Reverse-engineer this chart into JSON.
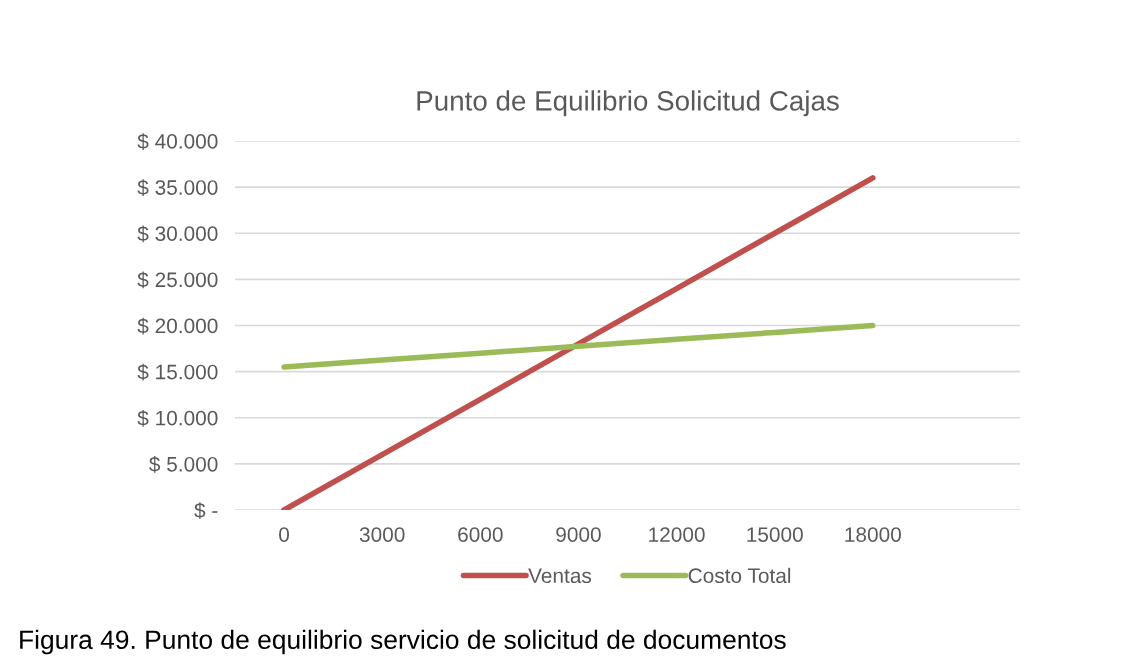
{
  "chart_data": {
    "type": "line",
    "title": "Punto de Equilibrio Solicitud Cajas",
    "categories": [
      "0",
      "3000",
      "6000",
      "9000",
      "12000",
      "15000",
      "18000",
      null
    ],
    "series": [
      {
        "name": "Ventas",
        "color": "#c0504d",
        "values": [
          0,
          6000,
          12000,
          18000,
          24000,
          30000,
          36000,
          null
        ]
      },
      {
        "name": "Costo Total",
        "color": "#9bbb59",
        "values": [
          15500,
          16250,
          17000,
          17750,
          18500,
          19250,
          20000,
          null
        ]
      }
    ],
    "ylim": [
      0,
      40000
    ],
    "yticks": [
      {
        "value": 0,
        "label": "$ -"
      },
      {
        "value": 5000,
        "label": "$ 5.000"
      },
      {
        "value": 10000,
        "label": "$ 10.000"
      },
      {
        "value": 15000,
        "label": "$ 15.000"
      },
      {
        "value": 20000,
        "label": "$ 20.000"
      },
      {
        "value": 25000,
        "label": "$ 25.000"
      },
      {
        "value": 30000,
        "label": "$ 30.000"
      },
      {
        "value": 35000,
        "label": "$ 35.000"
      },
      {
        "value": 40000,
        "label": "$ 40.000"
      }
    ],
    "grid": "y",
    "legend": "bottom",
    "marker": "none",
    "line_style": "solid",
    "annotations": [
      "Figura 49. Punto de equilibrio servicio de solicitud de documentos"
    ]
  }
}
